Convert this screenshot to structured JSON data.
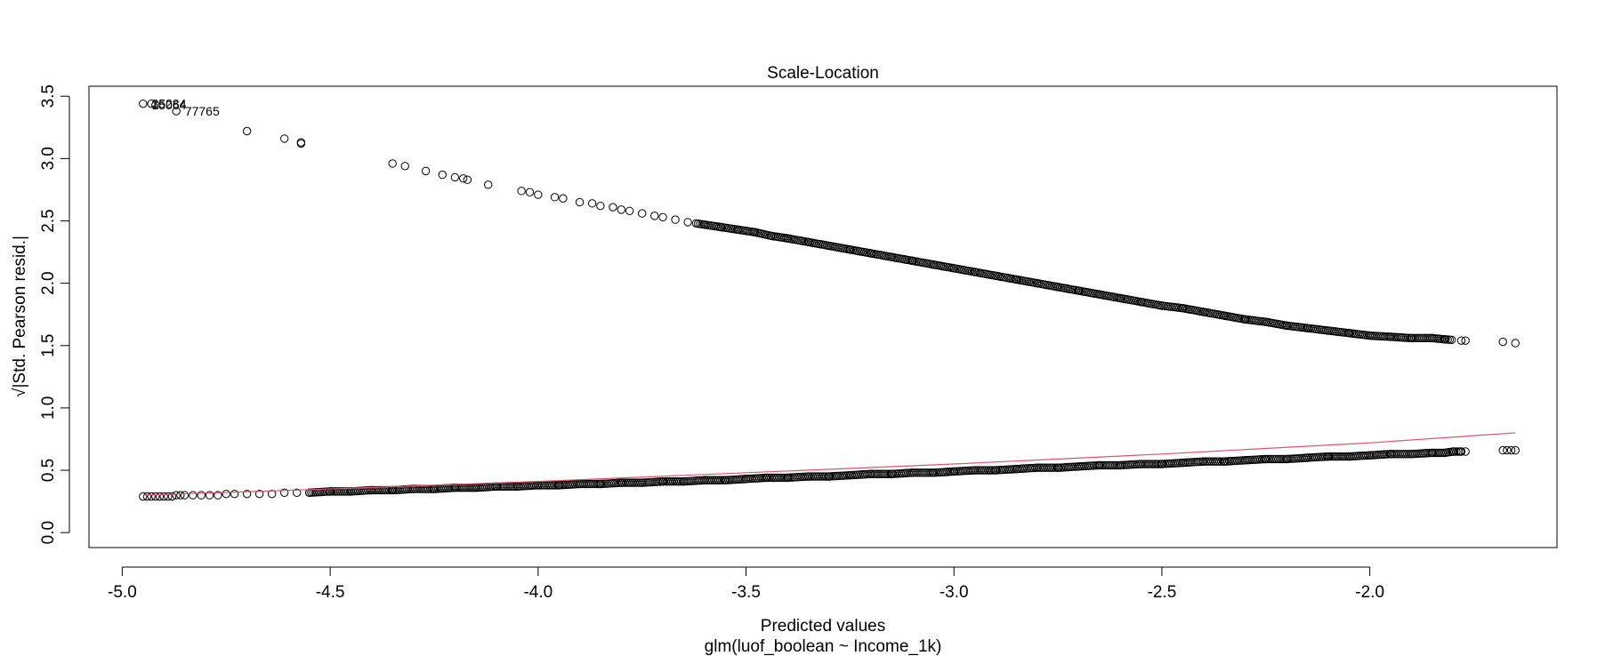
{
  "chart_data": {
    "type": "scatter",
    "title": "Scale-Location",
    "xlabel": "Predicted values",
    "subtitle": "glm(luof_boolean ~ Income_1k)",
    "ylabel": "√|Std. Pearson resid.|",
    "xlim": [
      -5.08,
      -1.55
    ],
    "ylim": [
      -0.12,
      3.58
    ],
    "xticks": [
      -5.0,
      -4.5,
      -4.0,
      -3.5,
      -3.0,
      -2.5,
      -2.0
    ],
    "xtick_labels": [
      "-5.0",
      "-4.5",
      "-4.0",
      "-3.5",
      "-3.0",
      "-2.5",
      "-2.0"
    ],
    "yticks": [
      0.0,
      0.5,
      1.0,
      1.5,
      2.0,
      2.5,
      3.0,
      3.5
    ],
    "ytick_labels": [
      "0.0",
      "0.5",
      "1.0",
      "1.5",
      "2.0",
      "2.5",
      "3.0",
      "3.5"
    ],
    "grid": false,
    "legend": "none",
    "upper_band": {
      "x": [
        -4.95,
        -4.93,
        -4.92,
        -4.87,
        -4.7,
        -4.61,
        -4.57,
        -4.57,
        -4.35,
        -4.32,
        -4.27,
        -4.23,
        -4.2,
        -4.18,
        -4.17,
        -4.12,
        -4.04,
        -4.02,
        -4.0,
        -3.96,
        -3.94,
        -3.9,
        -3.87,
        -3.85,
        -3.82,
        -3.8,
        -3.78,
        -3.75,
        -3.72,
        -3.7,
        -3.67,
        -3.64,
        -3.6,
        -3.56,
        -3.52,
        -3.48,
        -3.44,
        -3.4,
        -3.35,
        -3.3,
        -3.25,
        -3.2,
        -3.15,
        -3.1,
        -3.05,
        -3.0,
        -2.95,
        -2.9,
        -2.85,
        -2.8,
        -2.75,
        -2.7,
        -2.65,
        -2.6,
        -2.55,
        -2.5,
        -2.45,
        -2.4,
        -2.35,
        -2.3,
        -2.25,
        -2.2,
        -2.15,
        -2.1,
        -2.05,
        -2.0,
        -1.95,
        -1.9,
        -1.85,
        -1.82,
        -1.78,
        -1.77,
        -1.68,
        -1.65
      ],
      "y": [
        3.44,
        3.44,
        3.43,
        3.38,
        3.22,
        3.16,
        3.12,
        3.13,
        2.96,
        2.94,
        2.9,
        2.87,
        2.85,
        2.84,
        2.83,
        2.79,
        2.74,
        2.73,
        2.71,
        2.69,
        2.68,
        2.65,
        2.64,
        2.62,
        2.61,
        2.59,
        2.58,
        2.56,
        2.54,
        2.53,
        2.51,
        2.49,
        2.47,
        2.45,
        2.43,
        2.41,
        2.38,
        2.36,
        2.33,
        2.3,
        2.27,
        2.24,
        2.21,
        2.18,
        2.15,
        2.12,
        2.09,
        2.06,
        2.03,
        2.0,
        1.97,
        1.94,
        1.91,
        1.88,
        1.85,
        1.82,
        1.8,
        1.77,
        1.74,
        1.71,
        1.69,
        1.66,
        1.64,
        1.62,
        1.6,
        1.58,
        1.57,
        1.56,
        1.56,
        1.55,
        1.54,
        1.54,
        1.53,
        1.52
      ]
    },
    "lower_band": {
      "x": [
        -4.95,
        -4.94,
        -4.93,
        -4.92,
        -4.91,
        -4.9,
        -4.89,
        -4.88,
        -4.87,
        -4.86,
        -4.85,
        -4.83,
        -4.81,
        -4.79,
        -4.77,
        -4.75,
        -4.73,
        -4.7,
        -4.67,
        -4.64,
        -4.61,
        -4.58,
        -4.55,
        -4.5,
        -4.45,
        -4.4,
        -4.35,
        -4.3,
        -4.25,
        -4.2,
        -4.15,
        -4.1,
        -4.05,
        -4.0,
        -3.95,
        -3.9,
        -3.85,
        -3.8,
        -3.75,
        -3.7,
        -3.65,
        -3.6,
        -3.55,
        -3.5,
        -3.45,
        -3.4,
        -3.35,
        -3.3,
        -3.25,
        -3.2,
        -3.15,
        -3.1,
        -3.05,
        -3.0,
        -2.95,
        -2.9,
        -2.85,
        -2.8,
        -2.75,
        -2.7,
        -2.65,
        -2.6,
        -2.55,
        -2.5,
        -2.45,
        -2.4,
        -2.35,
        -2.3,
        -2.25,
        -2.2,
        -2.15,
        -2.1,
        -2.05,
        -2.0,
        -1.95,
        -1.9,
        -1.85,
        -1.82,
        -1.8,
        -1.78,
        -1.77,
        -1.68,
        -1.67,
        -1.66,
        -1.65
      ],
      "y": [
        0.29,
        0.29,
        0.29,
        0.29,
        0.29,
        0.29,
        0.29,
        0.29,
        0.3,
        0.3,
        0.3,
        0.3,
        0.3,
        0.3,
        0.3,
        0.31,
        0.31,
        0.31,
        0.31,
        0.31,
        0.32,
        0.32,
        0.32,
        0.33,
        0.33,
        0.34,
        0.34,
        0.35,
        0.35,
        0.36,
        0.36,
        0.37,
        0.37,
        0.38,
        0.38,
        0.39,
        0.39,
        0.4,
        0.4,
        0.41,
        0.41,
        0.42,
        0.42,
        0.43,
        0.44,
        0.44,
        0.45,
        0.45,
        0.46,
        0.47,
        0.47,
        0.48,
        0.48,
        0.49,
        0.5,
        0.5,
        0.51,
        0.52,
        0.52,
        0.53,
        0.54,
        0.54,
        0.55,
        0.55,
        0.56,
        0.57,
        0.57,
        0.58,
        0.59,
        0.59,
        0.6,
        0.61,
        0.61,
        0.62,
        0.63,
        0.63,
        0.64,
        0.64,
        0.65,
        0.65,
        0.65,
        0.66,
        0.66,
        0.66,
        0.66
      ]
    },
    "smoother": {
      "color": "#df536b",
      "x": [
        -4.95,
        -4.5,
        -4.0,
        -3.5,
        -3.0,
        -2.5,
        -2.0,
        -1.65
      ],
      "y": [
        0.3,
        0.35,
        0.41,
        0.48,
        0.55,
        0.63,
        0.72,
        0.8
      ]
    },
    "annotations": [
      {
        "text": "35284",
        "x": -4.94,
        "y": 3.44
      },
      {
        "text": "15064",
        "x": -4.94,
        "y": 3.43
      },
      {
        "text": "77765",
        "x": -4.86,
        "y": 3.38
      }
    ]
  }
}
